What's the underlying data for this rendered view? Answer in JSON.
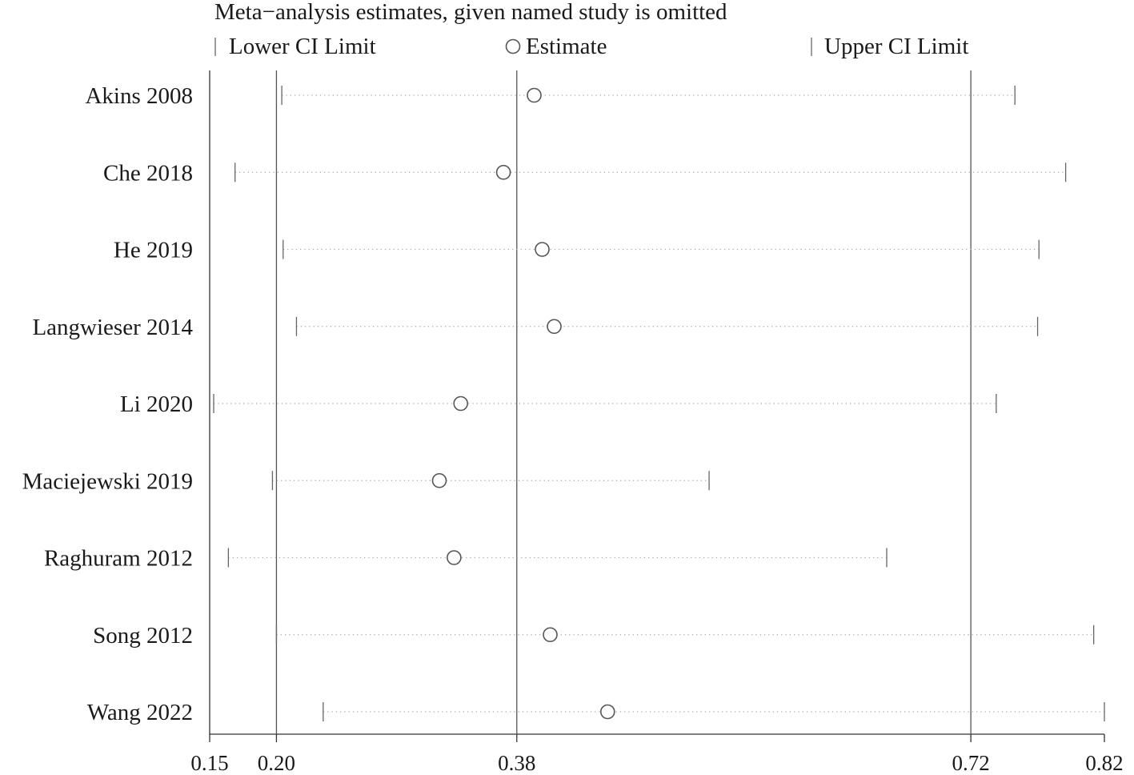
{
  "chart_data": {
    "type": "scatter",
    "title": "Meta−analysis estimates, given named study is omitted",
    "legend": {
      "lower": "Lower CI Limit",
      "estimate": "Estimate",
      "upper": "Upper CI Limit",
      "placement": "top"
    },
    "x_axis": {
      "range": [
        0.15,
        0.82
      ],
      "ticks": [
        {
          "value": 0.15,
          "label": "0.15"
        },
        {
          "value": 0.2,
          "label": "0.20"
        },
        {
          "value": 0.38,
          "label": "0.38"
        },
        {
          "value": 0.72,
          "label": "0.72"
        },
        {
          "value": 0.82,
          "label": "0.82"
        }
      ],
      "reference_lines": [
        0.2,
        0.38,
        0.72
      ]
    },
    "studies": [
      {
        "name": "Akins 2008",
        "lower": 0.204,
        "estimate": 0.393,
        "upper": 0.753
      },
      {
        "name": "Che 2018",
        "lower": 0.169,
        "estimate": 0.37,
        "upper": 0.791
      },
      {
        "name": "He 2019",
        "lower": 0.205,
        "estimate": 0.399,
        "upper": 0.771
      },
      {
        "name": "Langwieser 2014",
        "lower": 0.215,
        "estimate": 0.408,
        "upper": 0.77
      },
      {
        "name": "Li 2020",
        "lower": 0.153,
        "estimate": 0.338,
        "upper": 0.739
      },
      {
        "name": "Maciejewski 2019",
        "lower": 0.197,
        "estimate": 0.322,
        "upper": 0.524
      },
      {
        "name": "Raghuram 2012",
        "lower": 0.164,
        "estimate": 0.333,
        "upper": 0.657
      },
      {
        "name": "Song 2012",
        "lower": 0.2,
        "estimate": 0.405,
        "upper": 0.812
      },
      {
        "name": "Wang 2022",
        "lower": 0.235,
        "estimate": 0.448,
        "upper": 0.82
      }
    ]
  }
}
